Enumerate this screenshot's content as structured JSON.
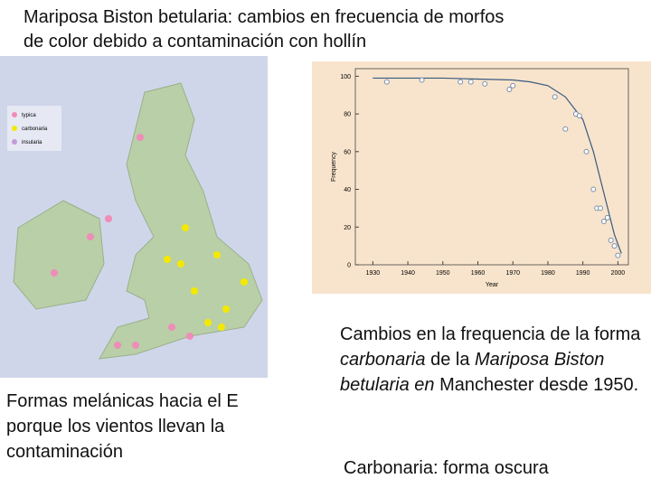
{
  "title": [
    "Mariposa Biston betularia: cambios en frecuencia de morfos",
    "de color debido a contaminación con hollín"
  ],
  "map": {
    "legend": [
      "typica",
      "carbonaria",
      "insularia"
    ],
    "caption": "Formas melánicas hacia el E porque los vientos llevan la contaminación"
  },
  "right_text": [
    "Cambios en la frequencia de la forma ",
    "carbonaria",
    " de la ",
    "Mariposa Biston betularia en",
    " Manchester desde 1950."
  ],
  "note": "Carbonaria: forma oscura",
  "chart_data": {
    "type": "scatter",
    "xlabel": "Year",
    "ylabel": "Frequency",
    "xlim": [
      1925,
      2003
    ],
    "ylim": [
      0,
      104
    ],
    "xticks": [
      1930,
      1940,
      1950,
      1960,
      1970,
      1980,
      1990,
      2000
    ],
    "yticks": [
      0,
      20,
      40,
      60,
      80,
      100
    ],
    "color": "#7a8fa8",
    "points": {
      "x": [
        1934,
        1944,
        1955,
        1958,
        1962,
        1969,
        1970,
        1982,
        1985,
        1988,
        1989,
        1991,
        1993,
        1994,
        1995,
        1996,
        1997,
        1998,
        1999,
        2000
      ],
      "values": [
        97,
        98,
        97,
        97,
        96,
        93,
        95,
        89,
        72,
        80,
        79,
        60,
        40,
        30,
        30,
        23,
        25,
        13,
        10,
        5
      ]
    },
    "curve": {
      "x": [
        1930,
        1950,
        1960,
        1970,
        1975,
        1980,
        1985,
        1990,
        1993,
        1996,
        1999,
        2001
      ],
      "values": [
        99,
        99,
        98.5,
        98,
        97,
        95,
        89,
        77,
        60,
        38,
        16,
        6
      ]
    }
  }
}
